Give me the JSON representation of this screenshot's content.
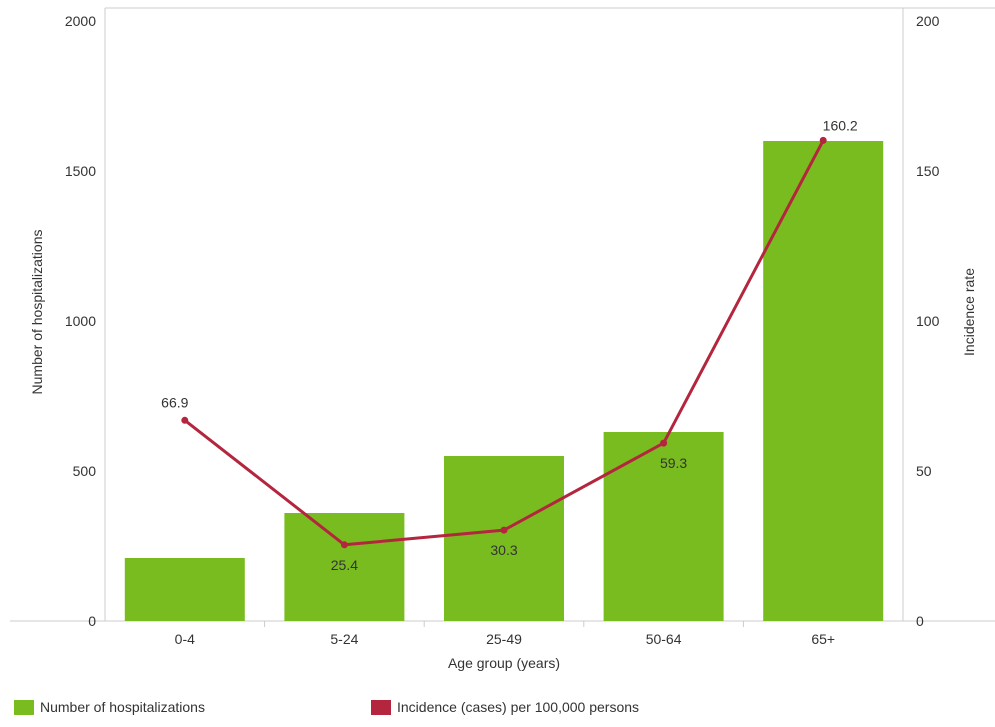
{
  "chart_data": {
    "type": "bar+line",
    "categories": [
      "0-4",
      "5-24",
      "25-49",
      "50-64",
      "65+"
    ],
    "series": [
      {
        "name": "Number of hospitalizations",
        "type": "bar",
        "axis": "left",
        "color": "#79bc1f",
        "values": [
          210,
          360,
          550,
          630,
          1600
        ]
      },
      {
        "name": "Incidence (cases) per 100,000 persons",
        "type": "line",
        "axis": "right",
        "color": "#b3263e",
        "values": [
          66.9,
          25.4,
          30.3,
          59.3,
          160.2
        ],
        "labels": [
          "66.9",
          "25.4",
          "30.3",
          "59.3",
          "160.2"
        ]
      }
    ],
    "xlabel": "Age group (years)",
    "ylabel_left": "Number of hospitalizations",
    "ylabel_right": "Incidence rate",
    "ylim_left": [
      0,
      2000
    ],
    "ylim_right": [
      0,
      200
    ],
    "yticks_left": [
      "0",
      "500",
      "1000",
      "1500",
      "2000"
    ],
    "yticks_right": [
      "0",
      "50",
      "100",
      "150",
      "200"
    ],
    "grid": false,
    "legend_position": "bottom-left"
  }
}
